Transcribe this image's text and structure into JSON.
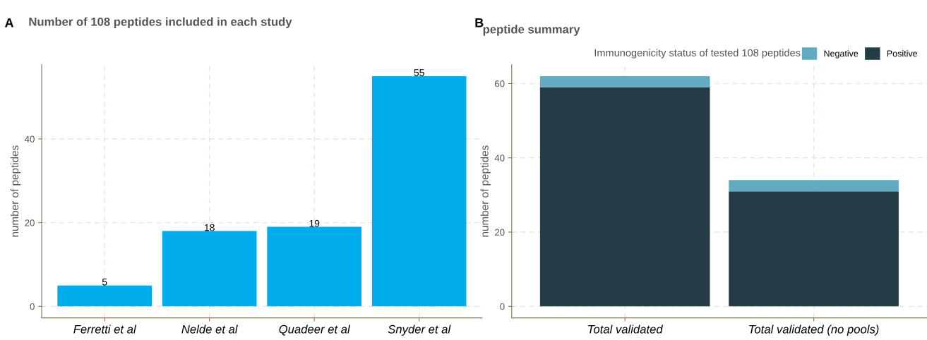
{
  "chart_data": [
    {
      "type": "bar",
      "title": "Number of 108 peptides included in each study",
      "ylabel": "number of peptides",
      "annotations": [
        "A"
      ],
      "categories": [
        "Ferretti et al",
        "Nelde et al",
        "Quadeer et al",
        "Snyder et al"
      ],
      "values": [
        5,
        18,
        19,
        55
      ],
      "color": "#00acec",
      "data_labels": true,
      "ylim": [
        -2.75,
        57.75
      ],
      "yticks": [
        0,
        20,
        40
      ],
      "grid": true
    },
    {
      "type": "bar",
      "title": "peptide summary",
      "ylabel": "number of peptides",
      "annotations": [
        "B"
      ],
      "legend_title": "Immunogenicity status of tested 108 peptides",
      "legend": "top",
      "stacked": true,
      "categories": [
        "Total validated",
        "Total validated (no pools)"
      ],
      "series": [
        {
          "name": "Positive",
          "color": "#243c45",
          "values": [
            59,
            31
          ]
        },
        {
          "name": "Negative",
          "color": "#63abc2",
          "values": [
            3,
            3
          ]
        }
      ],
      "ylim": [
        -3.1,
        65.1
      ],
      "yticks": [
        0,
        20,
        40,
        60
      ],
      "grid": true
    }
  ]
}
